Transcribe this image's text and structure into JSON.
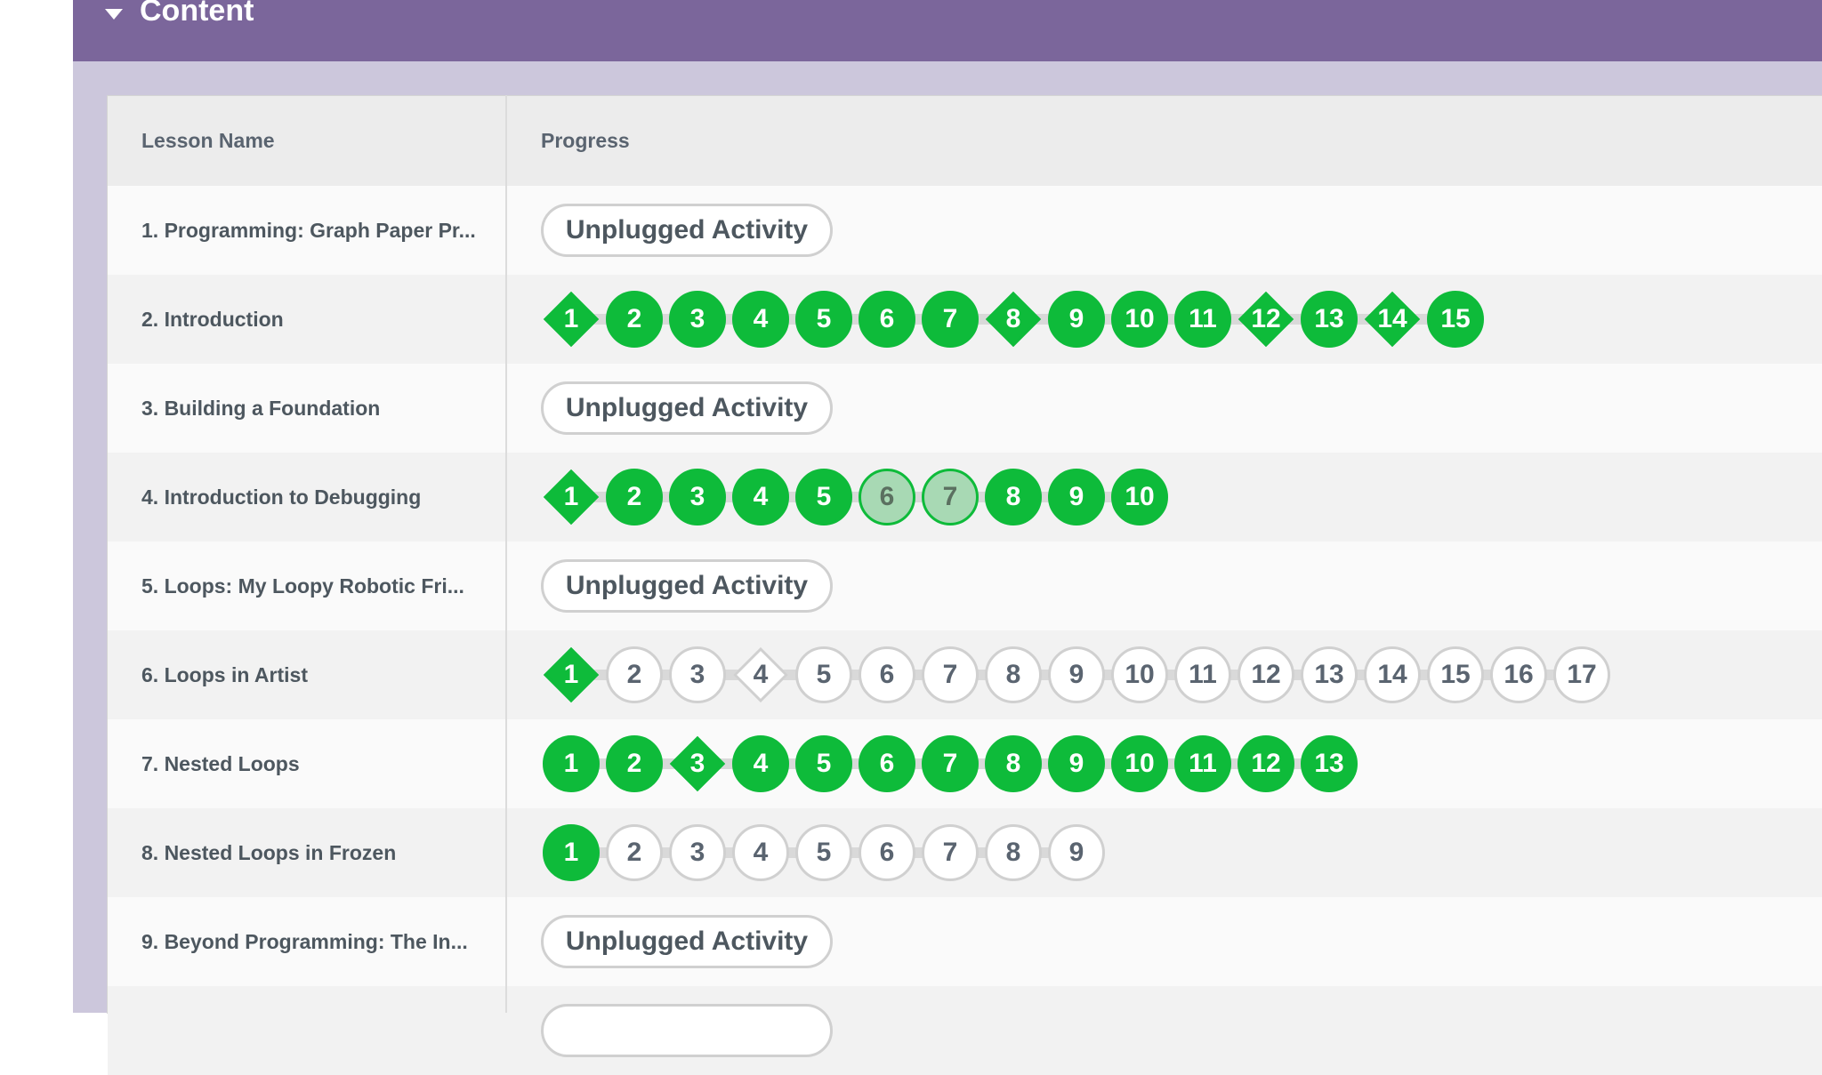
{
  "header": {
    "title": "Content"
  },
  "table": {
    "col_lesson": "Lesson Name",
    "col_progress": "Progress",
    "unplugged_label": "Unplugged Activity",
    "rows": [
      {
        "name": "1. Programming: Graph Paper Pr...",
        "type": "unplugged"
      },
      {
        "name": "2. Introduction",
        "type": "levels"
      },
      {
        "name": "3. Building a Foundation",
        "type": "unplugged"
      },
      {
        "name": "4. Introduction to Debugging",
        "type": "levels"
      },
      {
        "name": "5. Loops: My Loopy Robotic Fri...",
        "type": "unplugged"
      },
      {
        "name": "6. Loops in Artist",
        "type": "levels"
      },
      {
        "name": "7. Nested Loops",
        "type": "levels"
      },
      {
        "name": "8. Nested Loops in Frozen",
        "type": "levels"
      },
      {
        "name": "9. Beyond Programming: The In...",
        "type": "unplugged"
      }
    ]
  },
  "levels": {
    "row2": [
      {
        "n": "1",
        "shape": "diamond",
        "status": "done"
      },
      {
        "n": "2",
        "shape": "circle",
        "status": "done"
      },
      {
        "n": "3",
        "shape": "circle",
        "status": "done"
      },
      {
        "n": "4",
        "shape": "circle",
        "status": "done"
      },
      {
        "n": "5",
        "shape": "circle",
        "status": "done"
      },
      {
        "n": "6",
        "shape": "circle",
        "status": "done"
      },
      {
        "n": "7",
        "shape": "circle",
        "status": "done"
      },
      {
        "n": "8",
        "shape": "diamond",
        "status": "done"
      },
      {
        "n": "9",
        "shape": "circle",
        "status": "done"
      },
      {
        "n": "10",
        "shape": "circle",
        "status": "done"
      },
      {
        "n": "11",
        "shape": "circle",
        "status": "done"
      },
      {
        "n": "12",
        "shape": "diamond",
        "status": "done"
      },
      {
        "n": "13",
        "shape": "circle",
        "status": "done"
      },
      {
        "n": "14",
        "shape": "diamond",
        "status": "done"
      },
      {
        "n": "15",
        "shape": "circle",
        "status": "done"
      }
    ],
    "row4": [
      {
        "n": "1",
        "shape": "diamond",
        "status": "done"
      },
      {
        "n": "2",
        "shape": "circle",
        "status": "done"
      },
      {
        "n": "3",
        "shape": "circle",
        "status": "done"
      },
      {
        "n": "4",
        "shape": "circle",
        "status": "done"
      },
      {
        "n": "5",
        "shape": "circle",
        "status": "done"
      },
      {
        "n": "6",
        "shape": "circle",
        "status": "partial"
      },
      {
        "n": "7",
        "shape": "circle",
        "status": "partial"
      },
      {
        "n": "8",
        "shape": "circle",
        "status": "done"
      },
      {
        "n": "9",
        "shape": "circle",
        "status": "done"
      },
      {
        "n": "10",
        "shape": "circle",
        "status": "done"
      }
    ],
    "row6": [
      {
        "n": "1",
        "shape": "diamond",
        "status": "done"
      },
      {
        "n": "2",
        "shape": "circle",
        "status": "empty"
      },
      {
        "n": "3",
        "shape": "circle",
        "status": "empty"
      },
      {
        "n": "4",
        "shape": "diamond",
        "status": "empty"
      },
      {
        "n": "5",
        "shape": "circle",
        "status": "empty"
      },
      {
        "n": "6",
        "shape": "circle",
        "status": "empty"
      },
      {
        "n": "7",
        "shape": "circle",
        "status": "empty"
      },
      {
        "n": "8",
        "shape": "circle",
        "status": "empty"
      },
      {
        "n": "9",
        "shape": "circle",
        "status": "empty"
      },
      {
        "n": "10",
        "shape": "circle",
        "status": "empty"
      },
      {
        "n": "11",
        "shape": "circle",
        "status": "empty"
      },
      {
        "n": "12",
        "shape": "circle",
        "status": "empty"
      },
      {
        "n": "13",
        "shape": "circle",
        "status": "empty"
      },
      {
        "n": "14",
        "shape": "circle",
        "status": "empty"
      },
      {
        "n": "15",
        "shape": "circle",
        "status": "empty"
      },
      {
        "n": "16",
        "shape": "circle",
        "status": "empty"
      },
      {
        "n": "17",
        "shape": "circle",
        "status": "empty"
      }
    ],
    "row7": [
      {
        "n": "1",
        "shape": "circle",
        "status": "done"
      },
      {
        "n": "2",
        "shape": "circle",
        "status": "done"
      },
      {
        "n": "3",
        "shape": "diamond",
        "status": "done"
      },
      {
        "n": "4",
        "shape": "circle",
        "status": "done"
      },
      {
        "n": "5",
        "shape": "circle",
        "status": "done"
      },
      {
        "n": "6",
        "shape": "circle",
        "status": "done"
      },
      {
        "n": "7",
        "shape": "circle",
        "status": "done"
      },
      {
        "n": "8",
        "shape": "circle",
        "status": "done"
      },
      {
        "n": "9",
        "shape": "circle",
        "status": "done"
      },
      {
        "n": "10",
        "shape": "circle",
        "status": "done"
      },
      {
        "n": "11",
        "shape": "circle",
        "status": "done"
      },
      {
        "n": "12",
        "shape": "circle",
        "status": "done"
      },
      {
        "n": "13",
        "shape": "circle",
        "status": "done"
      }
    ],
    "row8": [
      {
        "n": "1",
        "shape": "circle",
        "status": "done"
      },
      {
        "n": "2",
        "shape": "circle",
        "status": "empty"
      },
      {
        "n": "3",
        "shape": "circle",
        "status": "empty"
      },
      {
        "n": "4",
        "shape": "circle",
        "status": "empty"
      },
      {
        "n": "5",
        "shape": "circle",
        "status": "empty"
      },
      {
        "n": "6",
        "shape": "circle",
        "status": "empty"
      },
      {
        "n": "7",
        "shape": "circle",
        "status": "empty"
      },
      {
        "n": "8",
        "shape": "circle",
        "status": "empty"
      },
      {
        "n": "9",
        "shape": "circle",
        "status": "empty"
      }
    ]
  },
  "colors": {
    "header_bg": "#7b669b",
    "done_green": "#0ebb3a",
    "partial_green": "#a8d9b4"
  }
}
